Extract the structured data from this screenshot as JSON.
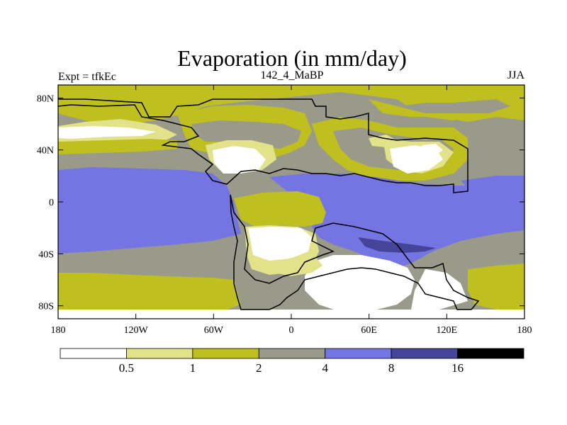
{
  "title": "Evaporation (in mm/day)",
  "left_label": "Expt = tfkEc",
  "center_label": "142_4_MaBP",
  "right_label": "JJA",
  "map": {
    "lon_range": [
      -180,
      180
    ],
    "lat_range": [
      -90,
      90
    ],
    "lat_ticks": [
      {
        "value": 80,
        "label": "80N"
      },
      {
        "value": 40,
        "label": "40N"
      },
      {
        "value": 0,
        "label": "0"
      },
      {
        "value": -40,
        "label": "40S"
      },
      {
        "value": -80,
        "label": "80S"
      }
    ],
    "lon_ticks": [
      {
        "value": -180,
        "label": "180"
      },
      {
        "value": -120,
        "label": "120W"
      },
      {
        "value": -60,
        "label": "60W"
      },
      {
        "value": 0,
        "label": "0"
      },
      {
        "value": 60,
        "label": "60E"
      },
      {
        "value": 120,
        "label": "120E"
      },
      {
        "value": 180,
        "label": "180"
      }
    ]
  },
  "colorbar": {
    "colors": [
      "#ffffff",
      "#e2e28a",
      "#bfbf1f",
      "#9a9a8a",
      "#7474e2",
      "#44449a",
      "#000000"
    ],
    "labels": [
      "0.5",
      "1",
      "2",
      "4",
      "8",
      "16"
    ]
  },
  "colors": {
    "c0": "#ffffff",
    "c1": "#e2e28a",
    "c2": "#bfbf1f",
    "c3": "#9a9a8a",
    "c4": "#7474e2",
    "c5": "#44449a",
    "c6": "#000000"
  }
}
